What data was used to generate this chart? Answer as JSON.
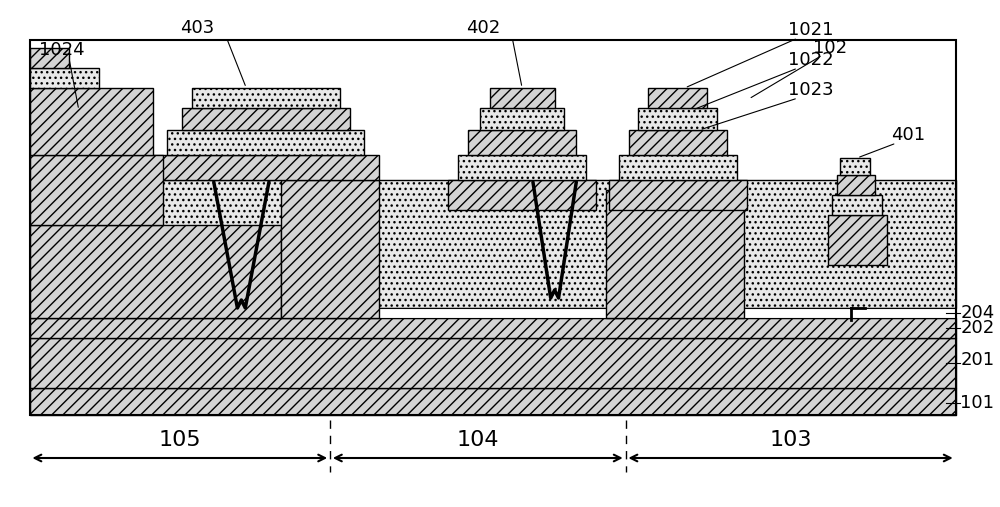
{
  "fig_width": 10.0,
  "fig_height": 5.07,
  "dpi": 100,
  "colors": {
    "dot": "#e8e8e8",
    "diag": "#d0d0d0",
    "white": "#ffffff",
    "black": "#000000",
    "bg": "#ffffff"
  }
}
